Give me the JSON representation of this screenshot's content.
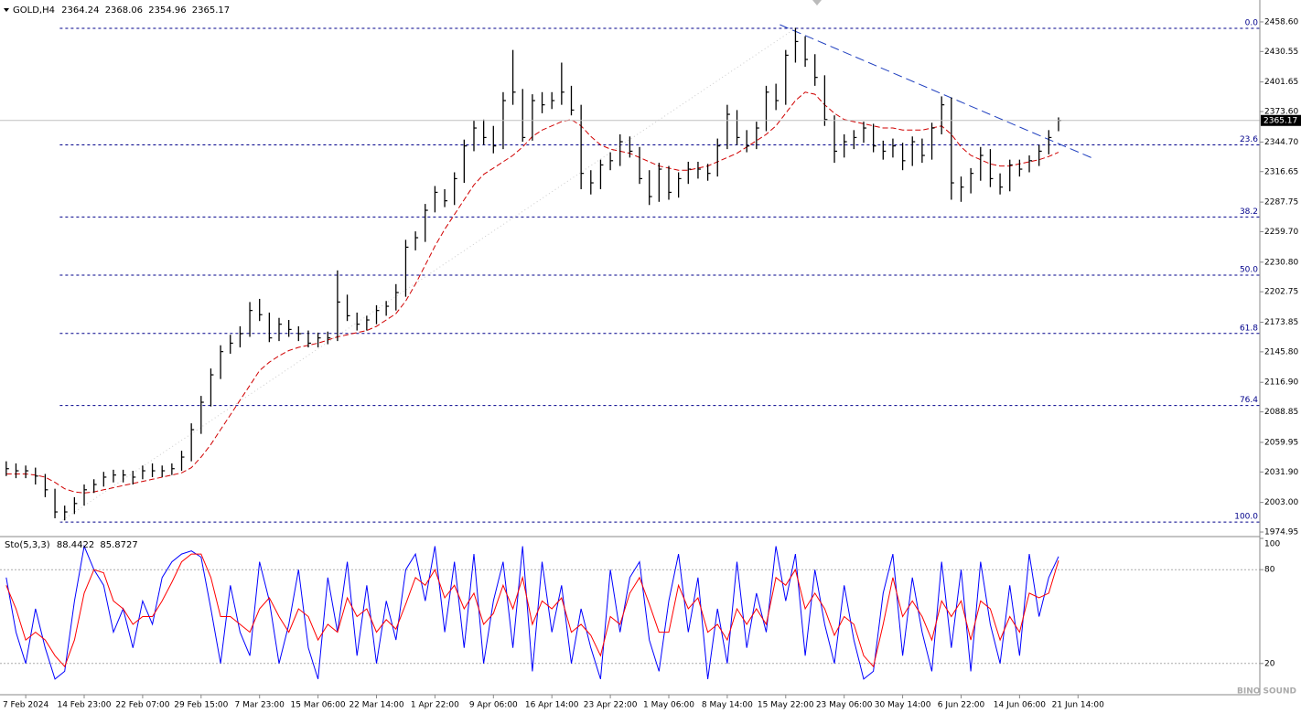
{
  "chart_data": [
    {
      "type": "ohlc",
      "title": "GOLD,H4",
      "open_last": 2364.24,
      "color": "#000000",
      "xlim": [
        -0.64,
        128.66
      ],
      "ylim": [
        1971.5,
        2475.9
      ],
      "yticks": [
        {
          "value": 2458.6,
          "label": "2458.60"
        },
        2430.55,
        2401.65,
        {
          "value": 2373.6,
          "label": "2373.60"
        },
        {
          "value": 2344.7,
          "label": "2344.70"
        },
        2316.65,
        2287.75,
        {
          "value": 2259.7,
          "label": "2259.70"
        },
        {
          "value": 2230.8,
          "label": "2230.80"
        },
        2202.75,
        2173.85,
        {
          "value": 2145.8,
          "label": "2145.80"
        },
        {
          "value": 2116.9,
          "label": "2116.90"
        },
        2088.85,
        2059.95,
        {
          "value": 2031.9,
          "label": "2031.90"
        },
        {
          "value": 2003,
          "label": "2003.00"
        },
        1974.95
      ],
      "categories": [
        null,
        null,
        "7 Feb 2024",
        null,
        null,
        null,
        null,
        null,
        "14 Feb 23:00",
        null,
        null,
        null,
        null,
        null,
        "22 Feb 07:00",
        null,
        null,
        null,
        null,
        null,
        "29 Feb 15:00",
        null,
        null,
        null,
        null,
        null,
        "7 Mar 23:00",
        null,
        null,
        null,
        null,
        null,
        "15 Mar 06:00",
        null,
        null,
        null,
        null,
        null,
        "22 Mar 14:00",
        null,
        null,
        null,
        null,
        null,
        "1 Apr 22:00",
        null,
        null,
        null,
        null,
        null,
        "9 Apr 06:00",
        null,
        null,
        null,
        null,
        null,
        "16 Apr 14:00",
        null,
        null,
        null,
        null,
        null,
        "23 Apr 22:00",
        null,
        null,
        null,
        null,
        null,
        "1 May 06:00",
        null,
        null,
        null,
        null,
        null,
        "8 May 14:00",
        null,
        null,
        null,
        null,
        null,
        "15 May 22:00",
        null,
        null,
        null,
        null,
        null,
        "23 May 06:00",
        null,
        null,
        null,
        null,
        null,
        "30 May 14:00",
        null,
        null,
        null,
        null,
        null,
        "6 Jun 22:00",
        null,
        null,
        null,
        null,
        null,
        "14 Jun 06:00",
        null,
        null,
        null,
        null,
        null,
        "21 Jun 14:00"
      ],
      "high": [
        2042,
        2040,
        2038,
        2036,
        2030,
        2016,
        2000,
        2008,
        2020,
        2025,
        2032,
        2034,
        2034,
        2033,
        2038,
        2040,
        2038,
        2040,
        2052,
        2078,
        2104,
        2130,
        2152,
        2162,
        2170,
        2193,
        2196,
        2183,
        2178,
        2176,
        2170,
        2166,
        2164,
        2165,
        2223,
        2200,
        2183,
        2180,
        2190,
        2194,
        2210,
        2252,
        2260,
        2286,
        2303,
        2300,
        2316,
        2347,
        2365,
        2366,
        2360,
        2392,
        2432,
        2395,
        2390,
        2392,
        2392,
        2420,
        2398,
        2380,
        2318,
        2328,
        2335,
        2352,
        2350,
        2340,
        2318,
        2325,
        2322,
        2316,
        2326,
        2326,
        2324,
        2348,
        2380,
        2375,
        2356,
        2364,
        2398,
        2400,
        2432,
        2453,
        2445,
        2428,
        2408,
        2370,
        2352,
        2356,
        2364,
        2362,
        2346,
        2348,
        2344,
        2350,
        2348,
        2363,
        2388,
        2387,
        2312,
        2320,
        2340,
        2338,
        2315,
        2328,
        2328,
        2332,
        2342,
        2356,
        2368.06,
        null,
        null
      ],
      "low": [
        2028,
        2026,
        2026,
        2020,
        2008,
        1988,
        1986,
        1992,
        2000,
        2012,
        2018,
        2022,
        2022,
        2020,
        2025,
        2027,
        2027,
        2029,
        2033,
        2042,
        2068,
        2094,
        2120,
        2144,
        2150,
        2160,
        2175,
        2155,
        2156,
        2160,
        2156,
        2150,
        2150,
        2153,
        2156,
        2175,
        2166,
        2166,
        2172,
        2180,
        2185,
        2198,
        2242,
        2250,
        2278,
        2283,
        2285,
        2306,
        2336,
        2342,
        2334,
        2338,
        2380,
        2345,
        2346,
        2372,
        2376,
        2380,
        2370,
        2300,
        2295,
        2300,
        2318,
        2322,
        2330,
        2305,
        2285,
        2288,
        2290,
        2292,
        2305,
        2310,
        2308,
        2312,
        2338,
        2342,
        2335,
        2338,
        2355,
        2375,
        2380,
        2420,
        2416,
        2398,
        2360,
        2325,
        2330,
        2338,
        2344,
        2335,
        2328,
        2330,
        2318,
        2322,
        2325,
        2328,
        2352,
        2290,
        2288,
        2296,
        2308,
        2302,
        2295,
        2298,
        2312,
        2316,
        2322,
        2333,
        2354.96,
        null,
        null
      ],
      "close": [
        2035,
        2033,
        2033,
        2028,
        2015,
        1994,
        1994,
        2002,
        2015,
        2020,
        2027,
        2029,
        2029,
        2027,
        2033,
        2033,
        2033,
        2035,
        2046,
        2072,
        2098,
        2124,
        2146,
        2154,
        2163,
        2185,
        2181,
        2159,
        2172,
        2167,
        2163,
        2154,
        2159,
        2159,
        2193,
        2180,
        2172,
        2176,
        2185,
        2189,
        2202,
        2245,
        2254,
        2280,
        2297,
        2289,
        2310,
        2341,
        2358,
        2349,
        2341,
        2384,
        2392,
        2349,
        2384,
        2380,
        2384,
        2392,
        2375,
        2315,
        2306,
        2323,
        2327,
        2345,
        2336,
        2310,
        2293,
        2319,
        2297,
        2310,
        2319,
        2319,
        2315,
        2341,
        2371,
        2349,
        2341,
        2358,
        2392,
        2384,
        2427,
        2440,
        2423,
        2406,
        2366,
        2336,
        2345,
        2349,
        2358,
        2341,
        2336,
        2341,
        2327,
        2345,
        2332,
        2358,
        2380,
        2306,
        2302,
        2315,
        2332,
        2310,
        2302,
        2323,
        2319,
        2327,
        2336,
        2349,
        2365.17,
        null,
        null
      ],
      "ma": {
        "color": "#d00000",
        "values": [
          2030,
          2030,
          2030,
          2029,
          2027,
          2022,
          2016,
          2013,
          2012,
          2013,
          2015,
          2017,
          2019,
          2021,
          2023,
          2025,
          2027,
          2029,
          2031,
          2036,
          2046,
          2058,
          2072,
          2086,
          2100,
          2114,
          2128,
          2136,
          2142,
          2147,
          2150,
          2152,
          2154,
          2157,
          2160,
          2162,
          2164,
          2166,
          2170,
          2176,
          2182,
          2194,
          2210,
          2228,
          2246,
          2262,
          2276,
          2290,
          2304,
          2314,
          2320,
          2326,
          2332,
          2340,
          2350,
          2356,
          2360,
          2364,
          2366,
          2360,
          2350,
          2342,
          2338,
          2336,
          2334,
          2330,
          2326,
          2322,
          2320,
          2318,
          2318,
          2320,
          2322,
          2326,
          2330,
          2334,
          2340,
          2346,
          2352,
          2360,
          2372,
          2384,
          2392,
          2390,
          2380,
          2372,
          2366,
          2364,
          2362,
          2360,
          2358,
          2358,
          2356,
          2356,
          2356,
          2358,
          2360,
          2352,
          2340,
          2332,
          2328,
          2324,
          2322,
          2322,
          2324,
          2326,
          2328,
          2331,
          2335,
          null,
          null
        ]
      },
      "trendline": {
        "color": "#1f3fbf",
        "x": [
          79.4,
          111.7
        ],
        "y": [
          2456,
          2328.6
        ]
      },
      "fibonacci": {
        "color": "#00008b",
        "x": [
          5.5,
          81
        ],
        "y": [
          1984.4,
          2452.5
        ],
        "levels": [
          {
            "value": 0,
            "label": "0.0"
          },
          23.6,
          38.2,
          {
            "value": 50,
            "label": "50.0"
          },
          61.8,
          76.4,
          {
            "value": 100,
            "label": "100.0"
          }
        ]
      },
      "watermark": "BINO SOUND"
    },
    {
      "type": "line",
      "title": "Sto(5,3,3)",
      "ylim": [
        0,
        100
      ],
      "yticks": [
        100,
        80,
        20
      ],
      "series": [
        {
          "color": "#0000ff",
          "values": [
            75,
            40,
            20,
            55,
            30,
            10,
            15,
            60,
            95,
            80,
            70,
            40,
            55,
            30,
            60,
            45,
            75,
            85,
            90,
            92,
            88,
            55,
            20,
            70,
            40,
            25,
            85,
            60,
            20,
            45,
            80,
            30,
            10,
            75,
            40,
            85,
            25,
            70,
            20,
            60,
            35,
            80,
            90,
            60,
            95,
            40,
            85,
            30,
            90,
            20,
            60,
            85,
            30,
            95,
            15,
            85,
            40,
            70,
            20,
            55,
            30,
            10,
            80,
            40,
            75,
            85,
            35,
            15,
            60,
            90,
            40,
            75,
            10,
            55,
            20,
            85,
            30,
            65,
            40,
            95,
            60,
            90,
            25,
            80,
            45,
            20,
            70,
            35,
            10,
            15,
            65,
            90,
            25,
            75,
            40,
            15,
            85,
            30,
            80,
            15,
            85,
            45,
            20,
            70,
            25,
            90,
            50,
            75,
            88.4422,
            null,
            null
          ]
        },
        {
          "color": "#ff0000",
          "values": [
            70,
            55,
            35,
            40,
            35,
            25,
            18,
            35,
            65,
            80,
            78,
            60,
            55,
            45,
            50,
            50,
            60,
            72,
            85,
            90,
            90,
            75,
            50,
            50,
            45,
            40,
            55,
            62,
            50,
            40,
            55,
            50,
            35,
            45,
            40,
            62,
            50,
            55,
            40,
            48,
            42,
            58,
            75,
            70,
            80,
            62,
            70,
            55,
            65,
            45,
            52,
            70,
            55,
            75,
            45,
            60,
            55,
            62,
            40,
            45,
            38,
            25,
            50,
            45,
            65,
            75,
            58,
            40,
            40,
            70,
            55,
            62,
            40,
            45,
            35,
            55,
            45,
            55,
            45,
            75,
            70,
            80,
            55,
            65,
            55,
            38,
            50,
            45,
            25,
            18,
            45,
            75,
            50,
            60,
            50,
            35,
            60,
            50,
            60,
            35,
            60,
            55,
            35,
            50,
            40,
            65,
            62,
            65,
            85.8727,
            null,
            null
          ]
        }
      ]
    }
  ]
}
